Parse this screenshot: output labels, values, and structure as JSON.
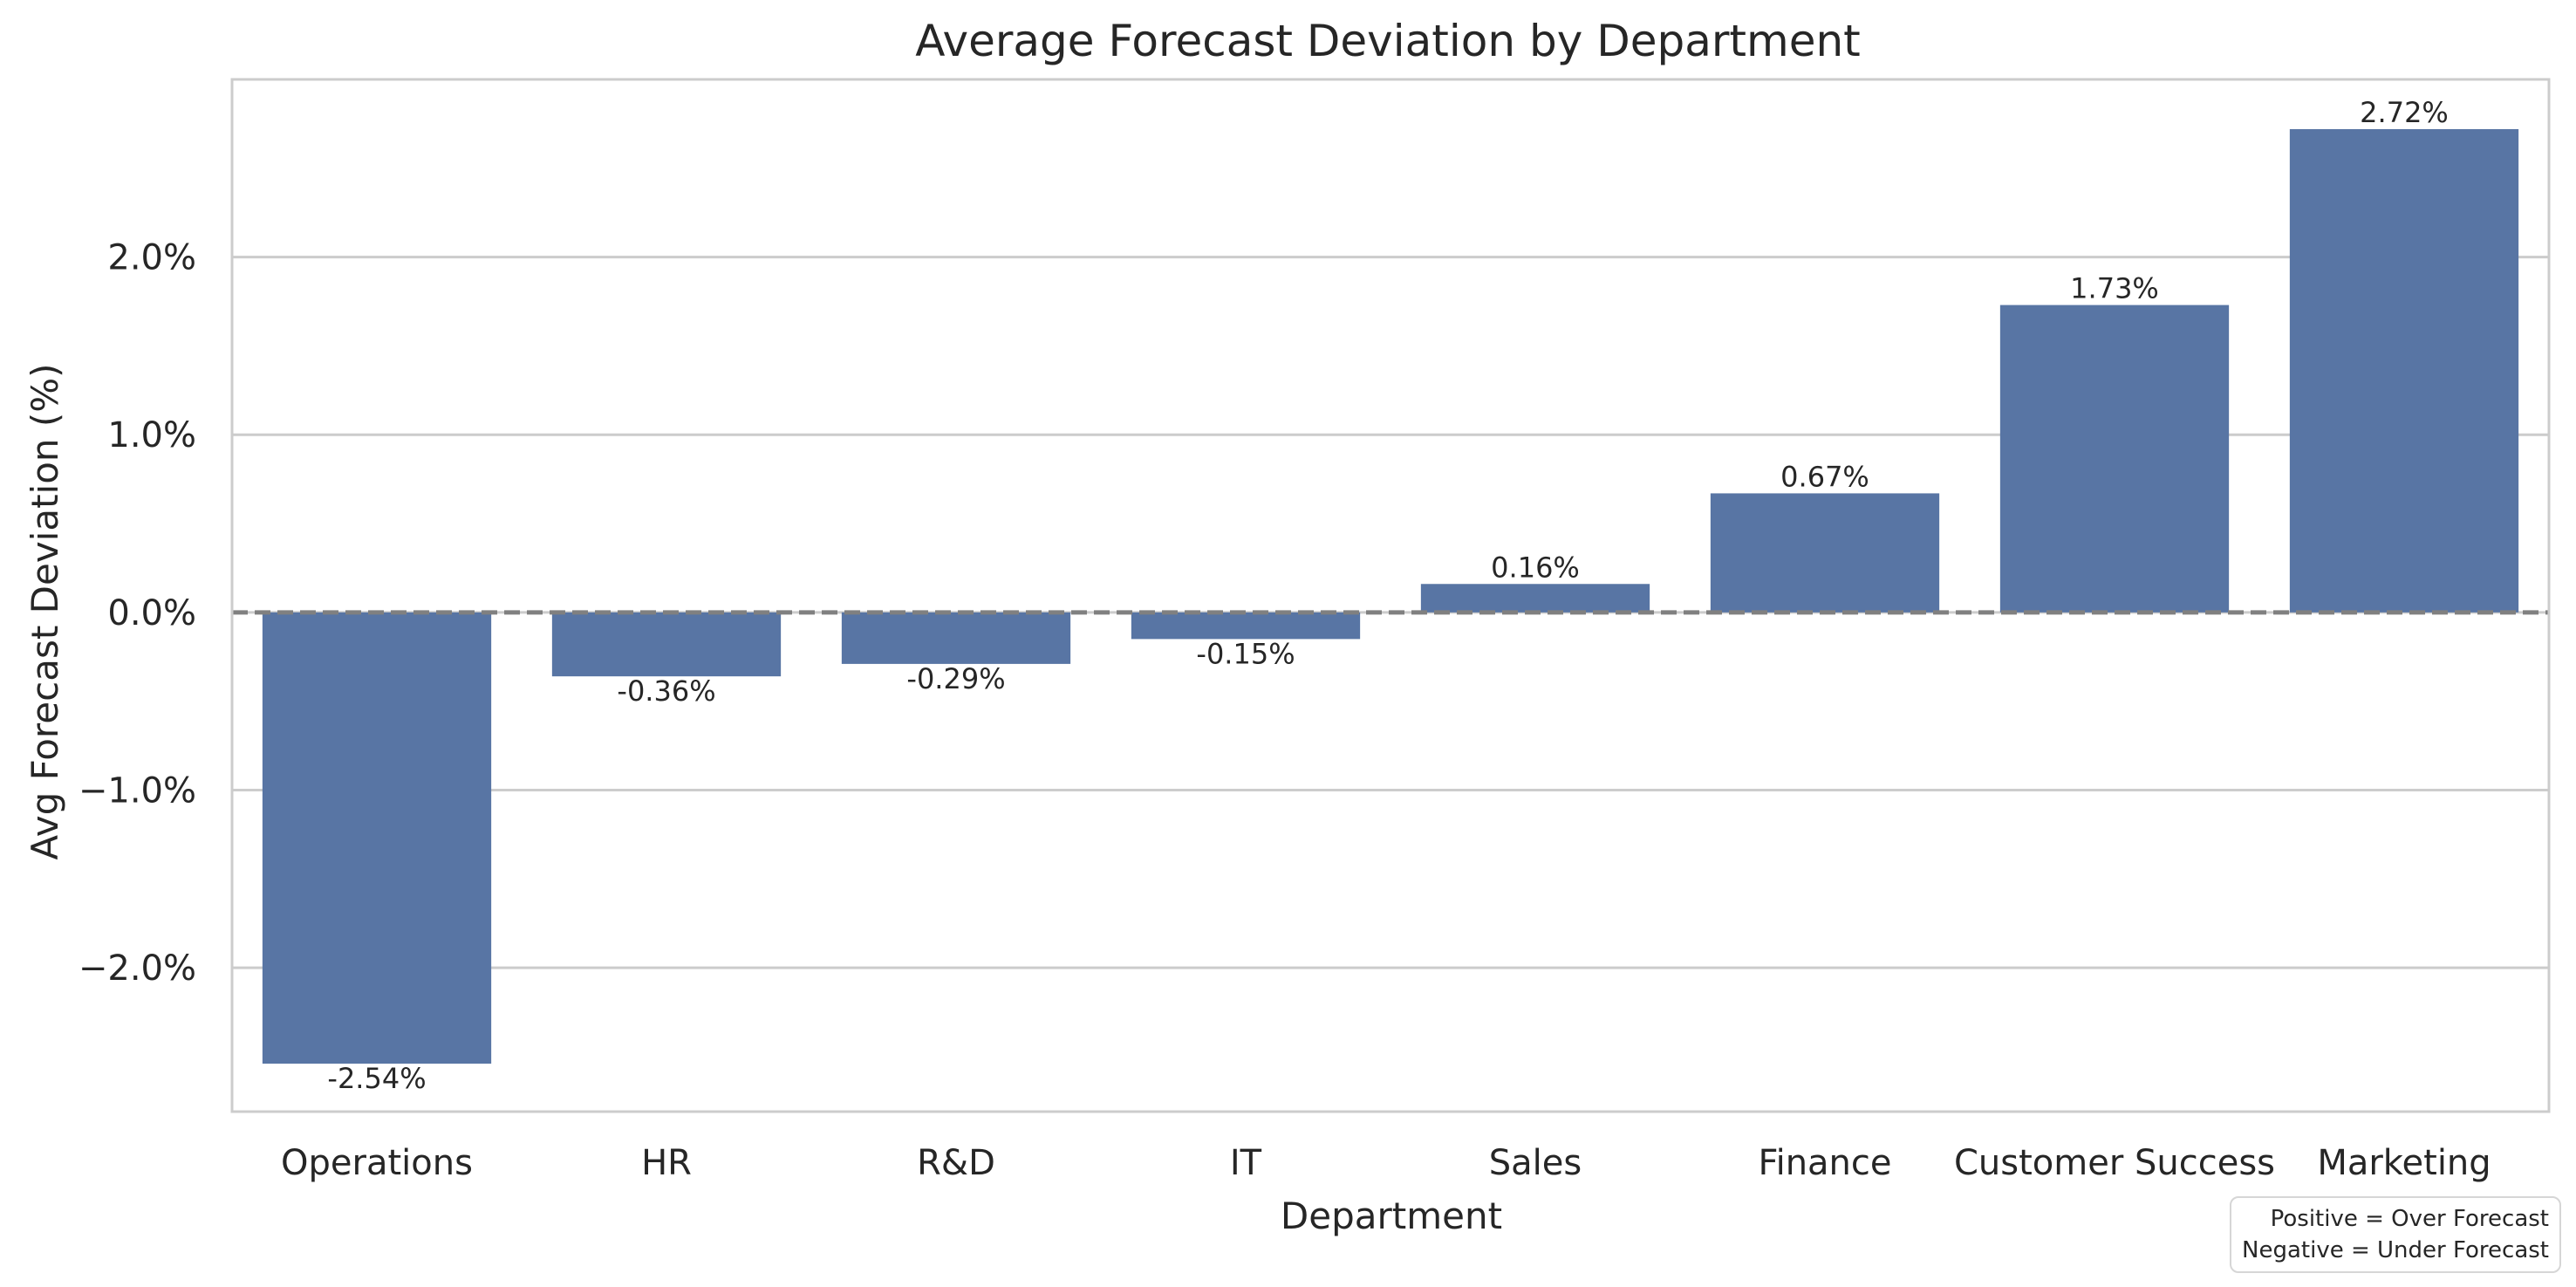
{
  "chart_data": {
    "type": "bar",
    "title": "Average Forecast Deviation by Department",
    "xlabel": "Department",
    "ylabel": "Avg Forecast Deviation (%)",
    "categories": [
      "Operations",
      "HR",
      "R&D",
      "IT",
      "Sales",
      "Finance",
      "Customer Success",
      "Marketing"
    ],
    "values": [
      -2.54,
      -0.36,
      -0.29,
      -0.15,
      0.16,
      0.67,
      1.73,
      2.72
    ],
    "value_labels": [
      "-2.54%",
      "-0.36%",
      "-0.29%",
      "-0.15%",
      "0.16%",
      "0.67%",
      "1.73%",
      "2.72%"
    ],
    "ylim": [
      -2.81,
      3.0
    ],
    "yticks": [
      -2.0,
      -1.0,
      0.0,
      1.0,
      2.0
    ],
    "ytick_labels": [
      "−2.0%",
      "−1.0%",
      "0.0%",
      "1.0%",
      "2.0%"
    ],
    "grid": true,
    "reference_line": 0,
    "bar_color": "#5875a4",
    "reference_line_color": "#808080",
    "grid_color": "#cccccc"
  },
  "note": {
    "line1": "Positive = Over Forecast",
    "line2": "Negative = Under Forecast"
  }
}
